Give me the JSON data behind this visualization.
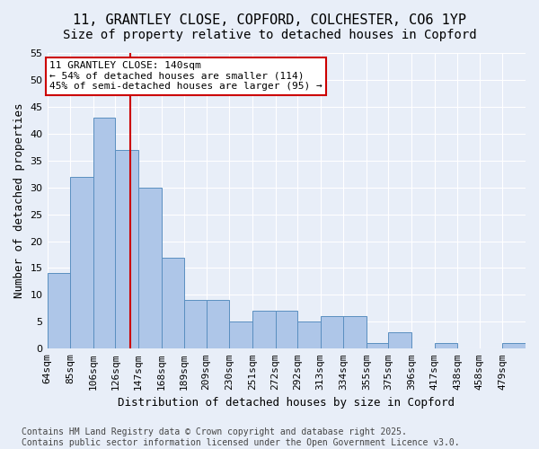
{
  "title1": "11, GRANTLEY CLOSE, COPFORD, COLCHESTER, CO6 1YP",
  "title2": "Size of property relative to detached houses in Copford",
  "xlabel": "Distribution of detached houses by size in Copford",
  "ylabel": "Number of detached properties",
  "bar_values": [
    14,
    32,
    43,
    37,
    30,
    17,
    9,
    9,
    5,
    7,
    7,
    5,
    6,
    6,
    1,
    3,
    0,
    1,
    0,
    0,
    1
  ],
  "bin_labels": [
    "64sqm",
    "85sqm",
    "106sqm",
    "126sqm",
    "147sqm",
    "168sqm",
    "189sqm",
    "209sqm",
    "230sqm",
    "251sqm",
    "272sqm",
    "292sqm",
    "313sqm",
    "334sqm",
    "355sqm",
    "375sqm",
    "396sqm",
    "417sqm",
    "438sqm",
    "458sqm",
    "479sqm"
  ],
  "bin_edges": [
    64,
    85,
    106,
    126,
    147,
    168,
    189,
    209,
    230,
    251,
    272,
    292,
    313,
    334,
    355,
    375,
    396,
    417,
    438,
    458,
    479,
    500
  ],
  "bar_color": "#aec6e8",
  "bar_edge_color": "#5a8fc0",
  "vline_x": 140,
  "vline_color": "#cc0000",
  "annotation_text": "11 GRANTLEY CLOSE: 140sqm\n← 54% of detached houses are smaller (114)\n45% of semi-detached houses are larger (95) →",
  "annotation_box_color": "#ffffff",
  "annotation_box_edge": "#cc0000",
  "background_color": "#e8eef8",
  "ylim": [
    0,
    55
  ],
  "yticks": [
    0,
    5,
    10,
    15,
    20,
    25,
    30,
    35,
    40,
    45,
    50,
    55
  ],
  "footer_text": "Contains HM Land Registry data © Crown copyright and database right 2025.\nContains public sector information licensed under the Open Government Licence v3.0.",
  "title_fontsize": 11,
  "subtitle_fontsize": 10,
  "axis_label_fontsize": 9,
  "tick_fontsize": 8,
  "annotation_fontsize": 8,
  "footer_fontsize": 7
}
